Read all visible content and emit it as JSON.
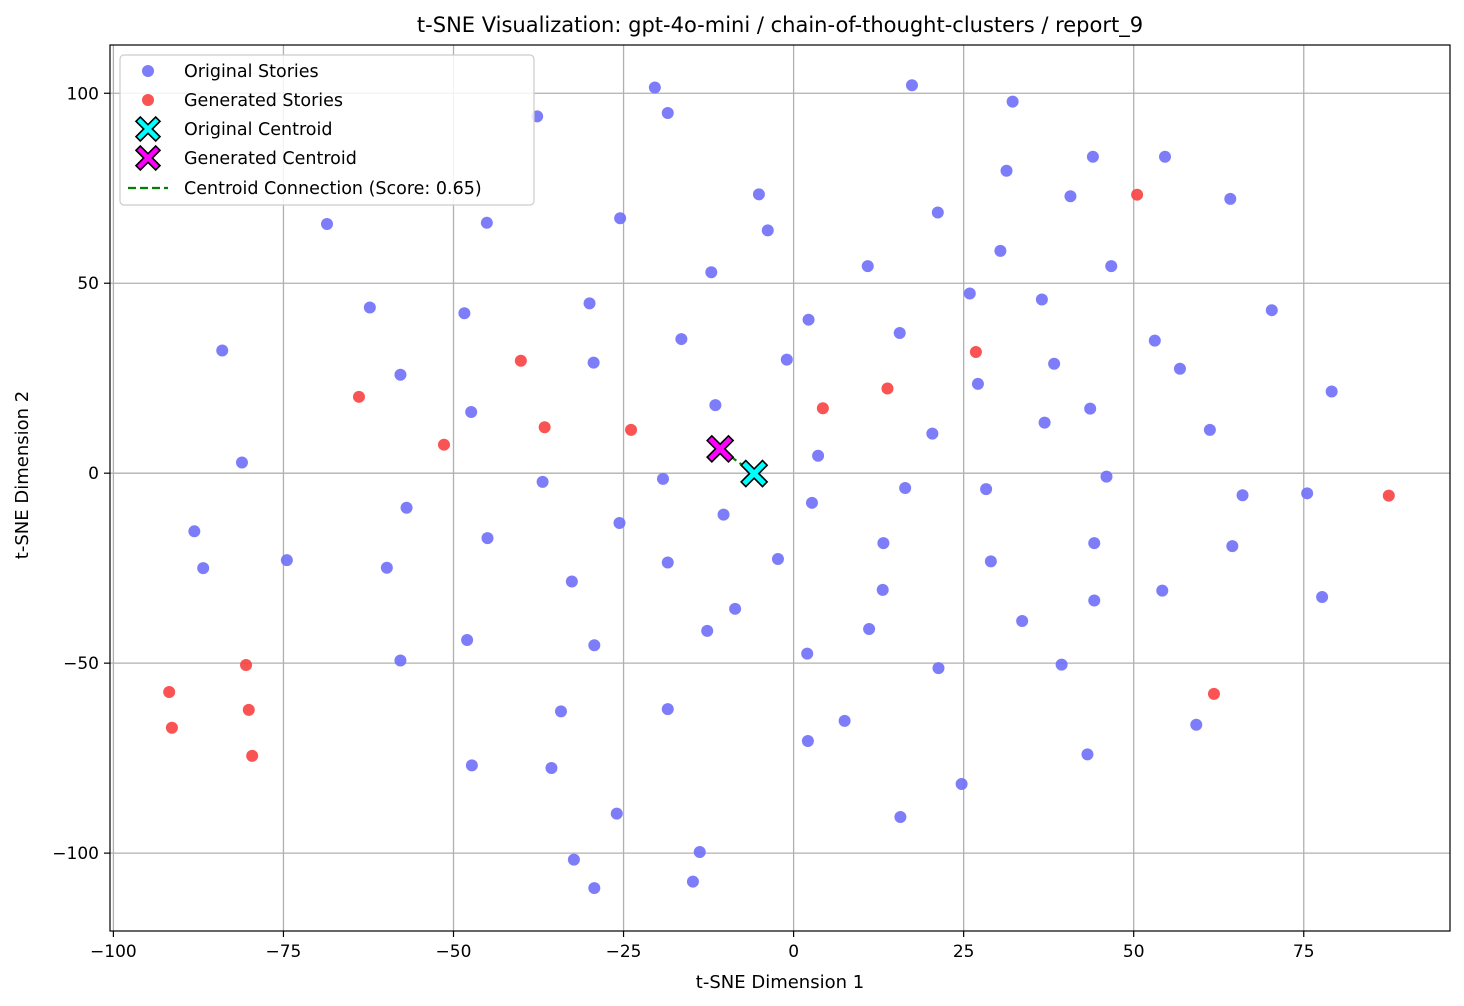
{
  "chart_data": {
    "type": "scatter",
    "title": "t-SNE Visualization: gpt-4o-mini / chain-of-thought-clusters / report_9",
    "xlabel": "t-SNE Dimension 1",
    "ylabel": "t-SNE Dimension 2",
    "xlim": [
      -100.5,
      96.5
    ],
    "ylim": [
      -120.5,
      112.7
    ],
    "xticks": [
      -100,
      -75,
      -50,
      -25,
      0,
      25,
      50,
      75
    ],
    "yticks": [
      -100,
      -50,
      0,
      50,
      100
    ],
    "xtick_labels": [
      "−100",
      "−75",
      "−50",
      "−25",
      "0",
      "25",
      "50",
      "75"
    ],
    "ytick_labels": [
      "−100",
      "−50",
      "0",
      "50",
      "100"
    ],
    "grid": true,
    "legend_position": "top-left",
    "colors": {
      "original": "#6f6ff8",
      "generated": "#f84040",
      "original_centroid": "#00ffff",
      "generated_centroid": "#ff00ff",
      "connection": "#008000"
    },
    "legend": [
      {
        "label": "Original Stories",
        "marker": "circle",
        "color": "#6f6ff8"
      },
      {
        "label": "Generated Stories",
        "marker": "circle",
        "color": "#f84040"
      },
      {
        "label": "Original Centroid",
        "marker": "x",
        "color": "#00ffff"
      },
      {
        "label": "Generated Centroid",
        "marker": "x",
        "color": "#ff00ff"
      },
      {
        "label": "Centroid Connection (Score: 0.65)",
        "marker": "dashed-line",
        "color": "#008000"
      }
    ],
    "series": [
      {
        "name": "Original Stories",
        "points": [
          [
            -20.4,
            101.5
          ],
          [
            17.4,
            102.1
          ],
          [
            32.2,
            97.8
          ],
          [
            -37.7,
            93.9
          ],
          [
            -18.5,
            94.8
          ],
          [
            44.0,
            83.3
          ],
          [
            54.6,
            83.3
          ],
          [
            31.3,
            79.6
          ],
          [
            -5.1,
            73.4
          ],
          [
            40.7,
            72.9
          ],
          [
            64.2,
            72.2
          ],
          [
            21.2,
            68.6
          ],
          [
            -25.5,
            67.1
          ],
          [
            -68.6,
            65.6
          ],
          [
            -45.1,
            65.9
          ],
          [
            -3.8,
            63.9
          ],
          [
            30.4,
            58.5
          ],
          [
            10.9,
            54.5
          ],
          [
            46.7,
            54.5
          ],
          [
            -12.1,
            52.9
          ],
          [
            25.9,
            47.3
          ],
          [
            36.5,
            45.7
          ],
          [
            -30.0,
            44.7
          ],
          [
            -62.3,
            43.6
          ],
          [
            70.3,
            42.9
          ],
          [
            -48.4,
            42.1
          ],
          [
            2.2,
            40.4
          ],
          [
            15.6,
            36.9
          ],
          [
            -16.5,
            35.3
          ],
          [
            53.1,
            34.9
          ],
          [
            -84.0,
            32.3
          ],
          [
            -1.0,
            29.9
          ],
          [
            -29.4,
            29.1
          ],
          [
            38.3,
            28.8
          ],
          [
            56.8,
            27.5
          ],
          [
            -57.8,
            25.9
          ],
          [
            27.1,
            23.5
          ],
          [
            79.1,
            21.5
          ],
          [
            -11.5,
            17.9
          ],
          [
            43.6,
            17.0
          ],
          [
            -47.4,
            16.1
          ],
          [
            36.9,
            13.3
          ],
          [
            61.2,
            11.4
          ],
          [
            20.4,
            10.4
          ],
          [
            3.6,
            4.6
          ],
          [
            -81.1,
            2.8
          ],
          [
            -19.2,
            -1.5
          ],
          [
            46.0,
            -0.9
          ],
          [
            -36.9,
            -2.3
          ],
          [
            16.4,
            -3.9
          ],
          [
            28.3,
            -4.2
          ],
          [
            66.0,
            -5.8
          ],
          [
            75.5,
            -5.3
          ],
          [
            2.7,
            -7.8
          ],
          [
            -56.9,
            -9.1
          ],
          [
            -10.3,
            -10.9
          ],
          [
            -25.6,
            -13.1
          ],
          [
            -88.1,
            -15.3
          ],
          [
            -45.0,
            -17.1
          ],
          [
            13.2,
            -18.4
          ],
          [
            44.2,
            -18.4
          ],
          [
            64.5,
            -19.2
          ],
          [
            -2.3,
            -22.6
          ],
          [
            -74.5,
            -22.9
          ],
          [
            29.0,
            -23.2
          ],
          [
            -18.5,
            -23.5
          ],
          [
            -86.8,
            -25.0
          ],
          [
            -59.8,
            -24.9
          ],
          [
            -32.6,
            -28.5
          ],
          [
            13.1,
            -30.7
          ],
          [
            54.2,
            -30.9
          ],
          [
            77.7,
            -32.6
          ],
          [
            44.2,
            -33.5
          ],
          [
            -8.6,
            -35.7
          ],
          [
            33.6,
            -38.9
          ],
          [
            11.1,
            -41.0
          ],
          [
            -12.7,
            -41.5
          ],
          [
            -48.0,
            -43.9
          ],
          [
            -29.3,
            -45.3
          ],
          [
            2.0,
            -47.5
          ],
          [
            -57.8,
            -49.3
          ],
          [
            39.4,
            -50.4
          ],
          [
            21.3,
            -51.3
          ],
          [
            -18.5,
            -62.1
          ],
          [
            -34.2,
            -62.7
          ],
          [
            7.5,
            -65.2
          ],
          [
            59.2,
            -66.2
          ],
          [
            2.1,
            -70.5
          ],
          [
            43.2,
            -74.0
          ],
          [
            -47.3,
            -76.9
          ],
          [
            -35.6,
            -77.6
          ],
          [
            24.7,
            -81.8
          ],
          [
            -26.0,
            -89.6
          ],
          [
            15.7,
            -90.5
          ],
          [
            -13.8,
            -99.7
          ],
          [
            -32.3,
            -101.7
          ],
          [
            -14.8,
            -107.5
          ],
          [
            -29.3,
            -109.2
          ]
        ]
      },
      {
        "name": "Generated Stories",
        "points": [
          [
            50.5,
            73.3
          ],
          [
            26.8,
            31.9
          ],
          [
            -40.1,
            29.6
          ],
          [
            13.8,
            22.3
          ],
          [
            -63.9,
            20.1
          ],
          [
            4.3,
            17.1
          ],
          [
            -36.6,
            12.1
          ],
          [
            -23.9,
            11.4
          ],
          [
            -51.4,
            7.5
          ],
          [
            87.5,
            -5.9
          ],
          [
            -80.5,
            -50.5
          ],
          [
            -91.8,
            -57.6
          ],
          [
            61.8,
            -58.1
          ],
          [
            -80.1,
            -62.3
          ],
          [
            -91.4,
            -67.0
          ],
          [
            -79.6,
            -74.4
          ]
        ]
      }
    ],
    "centroids": [
      {
        "name": "Original Centroid",
        "x": -5.8,
        "y": -0.1
      },
      {
        "name": "Generated Centroid",
        "x": -10.8,
        "y": 6.4
      }
    ],
    "connection": {
      "name": "Centroid Connection (Score: 0.65)",
      "from": [
        -10.8,
        6.4
      ],
      "to": [
        -5.8,
        -0.1
      ]
    }
  }
}
